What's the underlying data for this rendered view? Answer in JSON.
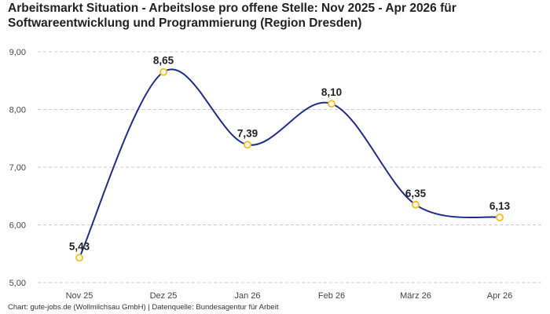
{
  "title_line1": "Arbeitsmarkt Situation - Arbeitslose pro offene Stelle: Nov 2025 - Apr 2026 für",
  "title_line2": "Softwareentwicklung und Programmierung (Region Dresden)",
  "source": "Chart: gute-jobs.de (Wollmilchsau GmbH) | Datenquelle: Bundesagentur für Arbeit",
  "colors": {
    "line": "#1f2d86",
    "marker": "#f2c230",
    "grid": "#cccccc"
  },
  "chart_data": {
    "type": "line",
    "title": "Arbeitsmarkt Situation - Arbeitslose pro offene Stelle: Nov 2025 - Apr 2026 für Softwareentwicklung und Programmierung (Region Dresden)",
    "categories": [
      "Nov 25",
      "Dez 25",
      "Jan 26",
      "Feb 26",
      "März 26",
      "Apr 26"
    ],
    "values": [
      5.43,
      8.65,
      7.39,
      8.1,
      6.35,
      6.13
    ],
    "data_labels": [
      "5,43",
      "8,65",
      "7,39",
      "8,10",
      "6,35",
      "6,13"
    ],
    "yticks": [
      5,
      6,
      7,
      8,
      9
    ],
    "ytick_labels": [
      "5,00",
      "6,00",
      "7,00",
      "8,00",
      "9,00"
    ],
    "ylim": [
      5,
      9
    ],
    "xlabel": "",
    "ylabel": "",
    "grid": true,
    "smooth": true
  }
}
